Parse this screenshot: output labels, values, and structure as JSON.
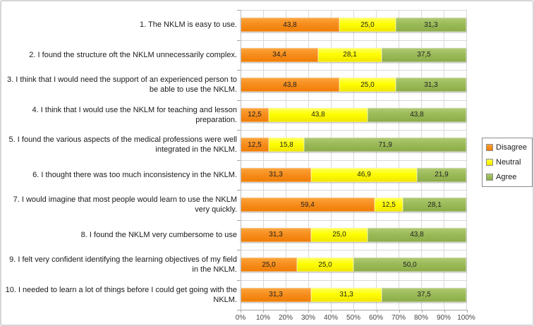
{
  "chart_data": {
    "type": "bar",
    "variant": "horizontal-stacked-100pct",
    "title": "",
    "categories": [
      "1. The NKLM is easy to use.",
      "2. I found the structure oft the NKLM unnecessarily complex.",
      "3. I think that I would need the support of an experienced person to be able to use the NKLM.",
      "4. I think that I would use the NKLM for teaching and lesson preparation.",
      "5. I found the various aspects of the medical professions were well integrated in the NKLM.",
      "6. I thought there was too much inconsistency in the NKLM.",
      "7. I would imagine that most people would learn to use the NKLM very quickly.",
      "8. I found the NKLM very cumbersome to use",
      "9. I felt very confident identifying the learning objectives of my field in the NKLM.",
      "10. I needed to learn a lot of things before I could get going with the NKLM."
    ],
    "series": [
      {
        "name": "Disagree",
        "color": "#F78E1E",
        "values": [
          43.8,
          34.4,
          43.8,
          12.5,
          12.5,
          31.3,
          59.4,
          31.3,
          25.0,
          31.3
        ],
        "labels": [
          "43,8",
          "34,4",
          "43,8",
          "12,5",
          "12,5",
          "31,3",
          "59,4",
          "31,3",
          "25,0",
          "31,3"
        ]
      },
      {
        "name": "Neutral",
        "color": "#FFFF00",
        "values": [
          25.0,
          28.1,
          25.0,
          43.8,
          15.8,
          46.9,
          12.5,
          25.0,
          25.0,
          31.3
        ],
        "labels": [
          "25,0",
          "28,1",
          "25,0",
          "43,8",
          "15,8",
          "46,9",
          "12,5",
          "25,0",
          "25,0",
          "31,3"
        ]
      },
      {
        "name": "Agree",
        "color": "#9BBB59",
        "values": [
          31.3,
          37.5,
          31.3,
          43.8,
          71.9,
          21.9,
          28.1,
          43.8,
          50.0,
          37.5
        ],
        "labels": [
          "31,3",
          "37,5",
          "31,3",
          "43,8",
          "71,9",
          "21,9",
          "28,1",
          "43,8",
          "50,0",
          "37,5"
        ]
      }
    ],
    "x_ticks": [
      "0%",
      "10%",
      "20%",
      "30%",
      "40%",
      "50%",
      "60%",
      "70%",
      "80%",
      "90%",
      "100%"
    ],
    "xlim": [
      0,
      100
    ],
    "grid": true,
    "legend": {
      "entries": [
        "Disagree",
        "Neutral",
        "Agree"
      ],
      "position": "right"
    }
  }
}
